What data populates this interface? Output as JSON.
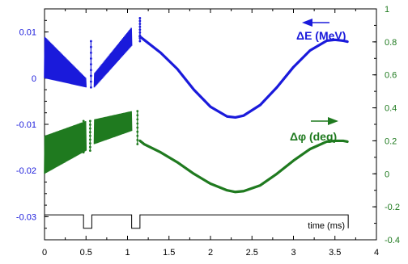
{
  "chart_data": {
    "type": "line",
    "xlabel": "time (ms)",
    "xlim": [
      0,
      4
    ],
    "x_ticks": [
      "0",
      "0.5",
      "1",
      "1.5",
      "2",
      "2.5",
      "3",
      "3.5",
      "4"
    ],
    "left_axis": {
      "color": "#1a1adb",
      "ylim": [
        -0.035,
        0.015
      ],
      "ticks": [
        "0.01",
        "0",
        "-0.01",
        "-0.02",
        "-0.03"
      ]
    },
    "right_axis": {
      "color": "#1f7a1f",
      "ylim": [
        -0.4,
        1.0
      ],
      "ticks": [
        "1",
        "0.8",
        "0.6",
        "0.4",
        "0.2",
        "0",
        "-0.2",
        "-0.4"
      ]
    },
    "series": [
      {
        "name": "ΔE (MeV)",
        "axis": "left",
        "color": "#1a1adb",
        "segments": [
          {
            "x": [
              0.0,
              0.5
            ],
            "lower": [
              0.0,
              -0.002
            ],
            "upper": [
              0.009,
              0.0
            ]
          },
          {
            "x": [
              0.6,
              1.05
            ],
            "lower": [
              -0.002,
              0.007
            ],
            "upper": [
              0.001,
              0.011
            ]
          }
        ],
        "spikes": [
          {
            "x": 0.56,
            "y_from": -0.002,
            "y_to": 0.008
          },
          {
            "x": 1.15,
            "y_from": 0.008,
            "y_to": 0.013
          }
        ],
        "curve": {
          "x": [
            1.15,
            1.4,
            1.6,
            1.8,
            2.0,
            2.2,
            2.3,
            2.4,
            2.6,
            2.8,
            3.0,
            3.2,
            3.4,
            3.5,
            3.6,
            3.65
          ],
          "y": [
            0.009,
            0.0055,
            0.002,
            -0.0025,
            -0.0062,
            -0.0083,
            -0.0085,
            -0.0081,
            -0.0058,
            -0.002,
            0.0024,
            0.006,
            0.0081,
            0.0083,
            0.0081,
            0.0079
          ]
        }
      },
      {
        "name": "Δφ (deg)",
        "axis": "right",
        "color": "#1f7a1f",
        "segments": [
          {
            "x": [
              0.0,
              0.5
            ],
            "lower": [
              0.0,
              0.14
            ],
            "upper": [
              0.23,
              0.32
            ]
          },
          {
            "x": [
              0.6,
              1.05
            ],
            "lower": [
              0.18,
              0.26
            ],
            "upper": [
              0.33,
              0.38
            ]
          }
        ],
        "spikes": [
          {
            "x": 0.47,
            "y_from": 0.32,
            "y_to": 0.13
          },
          {
            "x": 0.55,
            "y_from": 0.32,
            "y_to": 0.14
          },
          {
            "x": 1.12,
            "y_from": 0.38,
            "y_to": 0.18
          }
        ],
        "curve": {
          "x": [
            1.15,
            1.2,
            1.4,
            1.6,
            1.8,
            2.0,
            2.2,
            2.3,
            2.4,
            2.6,
            2.8,
            3.0,
            3.2,
            3.4,
            3.5,
            3.6,
            3.65
          ],
          "y": [
            0.2,
            0.18,
            0.13,
            0.07,
            0.0,
            -0.06,
            -0.1,
            -0.11,
            -0.105,
            -0.07,
            0.0,
            0.08,
            0.15,
            0.195,
            0.2,
            0.2,
            0.195
          ]
        }
      }
    ],
    "annotations": [
      {
        "text": "ΔE (MeV)",
        "series": "ΔE (MeV)",
        "arrow": "left"
      },
      {
        "text": "Δφ  (deg)",
        "series": "Δφ (deg)",
        "arrow": "right"
      }
    ],
    "timing_trace": {
      "low": -0.0325,
      "high": -0.0296,
      "high_intervals": [
        [
          0.0,
          0.47
        ],
        [
          0.57,
          1.05
        ],
        [
          1.15,
          3.66
        ]
      ]
    }
  }
}
